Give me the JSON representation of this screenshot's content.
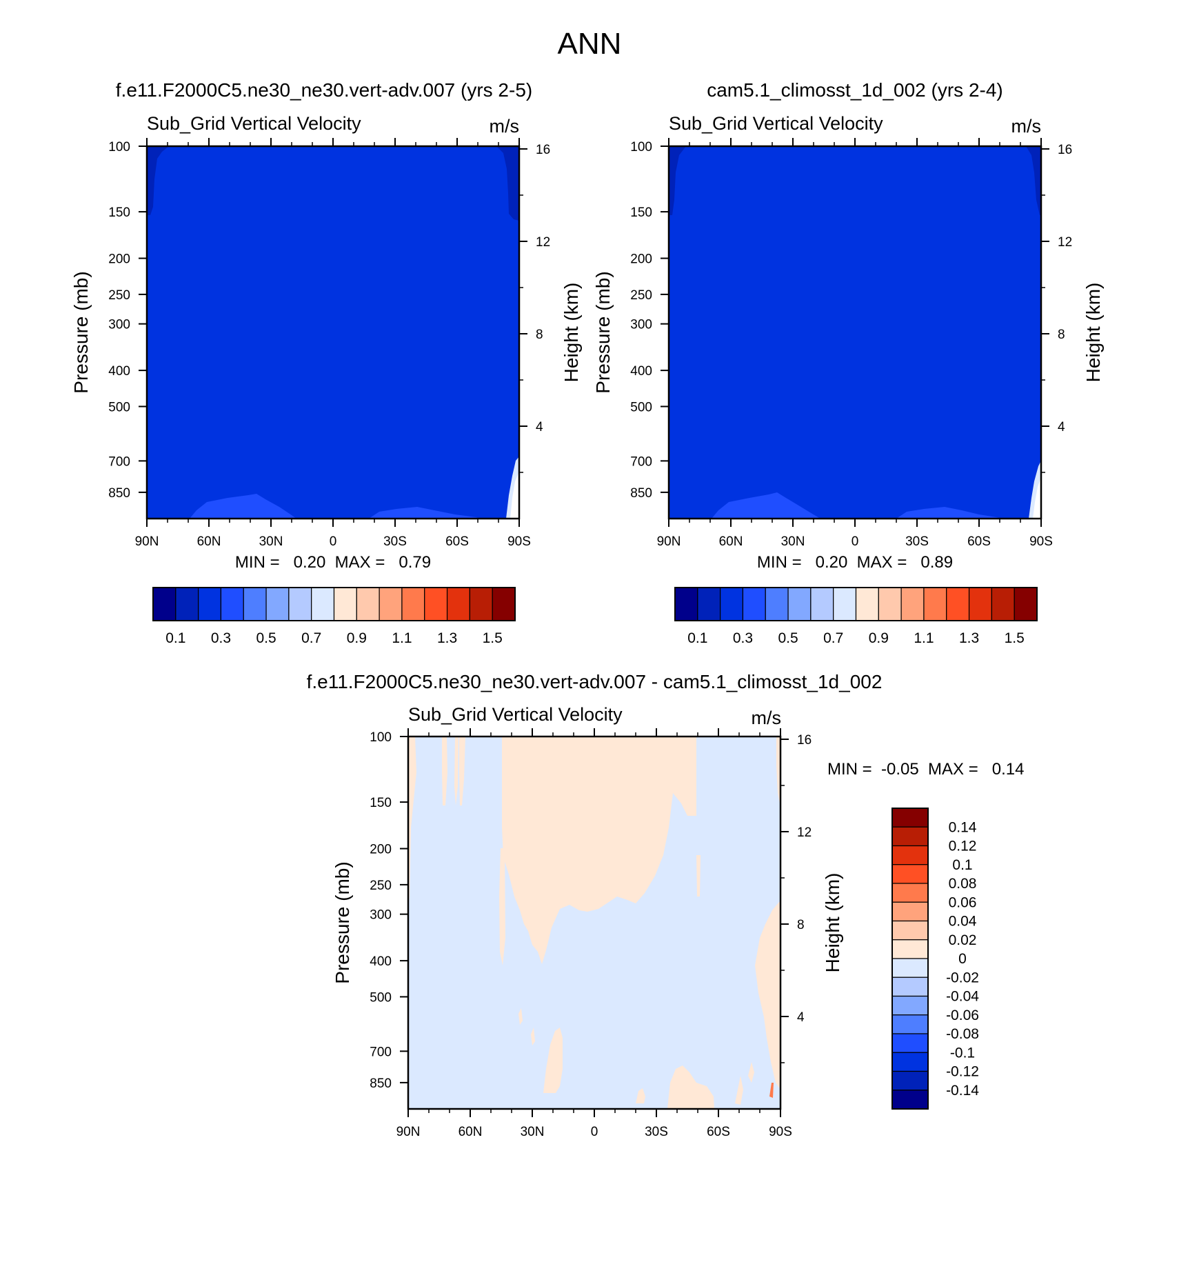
{
  "figure": {
    "title": "ANN"
  },
  "chart_data": [
    {
      "type": "heatmap",
      "id": "model1",
      "title": "f.e11.F2000C5.ne30_ne30.vert-adv.007 (yrs 2-5)",
      "subtitle": "Sub_Grid Vertical Velocity",
      "units": "m/s",
      "xlabel": "",
      "ylabel": "Pressure (mb)",
      "y2label": "Height (km)",
      "xlim": [
        90,
        -90
      ],
      "x_tick_values": [
        90,
        60,
        30,
        0,
        -30,
        -60,
        -90
      ],
      "x_ticks": [
        "90N",
        "60N",
        "30N",
        "0",
        "30S",
        "60S",
        "90S"
      ],
      "ylim": [
        100,
        1000
      ],
      "y_ticks": [
        100,
        150,
        200,
        250,
        300,
        400,
        500,
        700,
        850
      ],
      "y2_ticks": [
        16,
        12,
        8,
        4
      ],
      "min_label": "MIN =   0.20  MAX =   0.79",
      "min": 0.2,
      "max": 0.79,
      "dominant_level": 0.3,
      "colorbar": {
        "orientation": "horizontal",
        "labels": [
          "0.1",
          "0.3",
          "0.5",
          "0.7",
          "0.9",
          "1.1",
          "1.3",
          "1.5"
        ],
        "colors": [
          "#00008b",
          "#0022b9",
          "#0033e0",
          "#1f4eff",
          "#4e7eff",
          "#82a8ff",
          "#b4caff",
          "#dbe9ff",
          "#ffe8d6",
          "#ffc9ad",
          "#ffa37c",
          "#ff7a4c",
          "#ff5024",
          "#e3320d",
          "#b81e05",
          "#850000"
        ]
      }
    },
    {
      "type": "heatmap",
      "id": "model2",
      "title": "cam5.1_climosst_1d_002 (yrs 2-4)",
      "subtitle": "Sub_Grid Vertical Velocity",
      "units": "m/s",
      "xlabel": "",
      "ylabel": "Pressure (mb)",
      "y2label": "Height (km)",
      "xlim": [
        90,
        -90
      ],
      "x_tick_values": [
        90,
        60,
        30,
        0,
        -30,
        -60,
        -90
      ],
      "x_ticks": [
        "90N",
        "60N",
        "30N",
        "0",
        "30S",
        "60S",
        "90S"
      ],
      "ylim": [
        100,
        1000
      ],
      "y_ticks": [
        100,
        150,
        200,
        250,
        300,
        400,
        500,
        700,
        850
      ],
      "y2_ticks": [
        16,
        12,
        8,
        4
      ],
      "min_label": "MIN =   0.20  MAX =   0.89",
      "min": 0.2,
      "max": 0.89,
      "dominant_level": 0.3,
      "colorbar": {
        "orientation": "horizontal",
        "labels": [
          "0.1",
          "0.3",
          "0.5",
          "0.7",
          "0.9",
          "1.1",
          "1.3",
          "1.5"
        ],
        "colors": [
          "#00008b",
          "#0022b9",
          "#0033e0",
          "#1f4eff",
          "#4e7eff",
          "#82a8ff",
          "#b4caff",
          "#dbe9ff",
          "#ffe8d6",
          "#ffc9ad",
          "#ffa37c",
          "#ff7a4c",
          "#ff5024",
          "#e3320d",
          "#b81e05",
          "#850000"
        ]
      }
    },
    {
      "type": "heatmap",
      "id": "difference",
      "title": "f.e11.F2000C5.ne30_ne30.vert-adv.007 - cam5.1_climosst_1d_002",
      "subtitle": "Sub_Grid Vertical Velocity",
      "units": "m/s",
      "xlabel": "",
      "ylabel": "Pressure (mb)",
      "y2label": "Height (km)",
      "xlim": [
        90,
        -90
      ],
      "x_tick_values": [
        90,
        60,
        30,
        0,
        -30,
        -60,
        -90
      ],
      "x_ticks": [
        "90N",
        "60N",
        "30N",
        "0",
        "30S",
        "60S",
        "90S"
      ],
      "ylim": [
        100,
        1000
      ],
      "y_ticks": [
        100,
        150,
        200,
        250,
        300,
        400,
        500,
        700,
        850
      ],
      "y2_ticks": [
        16,
        12,
        8,
        4
      ],
      "min_label": "MIN =  -0.05  MAX =   0.14",
      "min": -0.05,
      "max": 0.14,
      "dominant_level": -0.01,
      "colorbar": {
        "orientation": "vertical",
        "labels": [
          "0.14",
          "0.12",
          "0.1",
          "0.08",
          "0.06",
          "0.04",
          "0.02",
          "0",
          "-0.02",
          "-0.04",
          "-0.06",
          "-0.08",
          "-0.1",
          "-0.12",
          "-0.14"
        ],
        "colors": [
          "#850000",
          "#b81e05",
          "#e3320d",
          "#ff5024",
          "#ff7a4c",
          "#ffa37c",
          "#ffc9ad",
          "#ffe8d6",
          "#dbe9ff",
          "#b4caff",
          "#82a8ff",
          "#4e7eff",
          "#1f4eff",
          "#0033e0",
          "#0022b9",
          "#00008b"
        ]
      }
    }
  ]
}
